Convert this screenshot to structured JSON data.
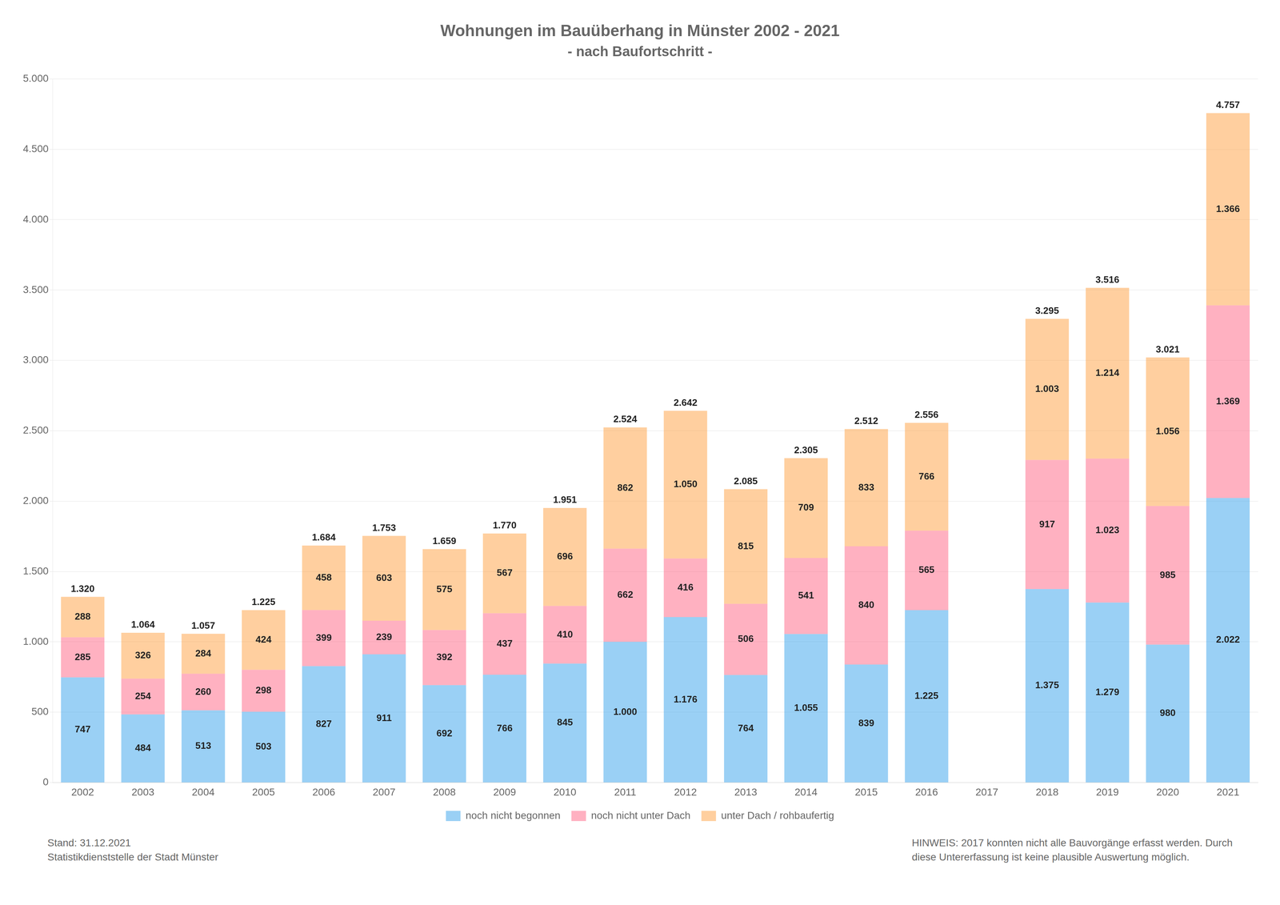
{
  "chart_data": {
    "type": "bar",
    "title": "Wohnungen im Bauüberhang in Münster 2002 - 2021",
    "subtitle": "- nach Baufortschritt -",
    "categories": [
      "2002",
      "2003",
      "2004",
      "2005",
      "2006",
      "2007",
      "2008",
      "2009",
      "2010",
      "2011",
      "2012",
      "2013",
      "2014",
      "2015",
      "2016",
      "2017",
      "2018",
      "2019",
      "2020",
      "2021"
    ],
    "series": [
      {
        "name": "noch nicht begonnen",
        "values": [
          747,
          484,
          513,
          503,
          827,
          911,
          692,
          766,
          845,
          1000,
          1176,
          764,
          1055,
          839,
          1225,
          0,
          1375,
          1279,
          980,
          2022
        ],
        "value_labels": [
          "747",
          "484",
          "513",
          "503",
          "827",
          "911",
          "692",
          "766",
          "845",
          "1.000",
          "1.176",
          "764",
          "1.055",
          "839",
          "1.225",
          null,
          "1.375",
          "1.279",
          "980",
          "2.022"
        ]
      },
      {
        "name": "noch nicht unter Dach",
        "values": [
          285,
          254,
          260,
          298,
          399,
          239,
          392,
          437,
          410,
          662,
          416,
          506,
          541,
          840,
          565,
          0,
          917,
          1023,
          985,
          1369
        ],
        "value_labels": [
          "285",
          "254",
          "260",
          "298",
          "399",
          "239",
          "392",
          "437",
          "410",
          "662",
          "416",
          "506",
          "541",
          "840",
          "565",
          null,
          "917",
          "1.023",
          "985",
          "1.369"
        ]
      },
      {
        "name": "unter Dach / rohbaufertig",
        "values": [
          288,
          326,
          284,
          424,
          458,
          603,
          575,
          567,
          696,
          862,
          1050,
          815,
          709,
          833,
          766,
          0,
          1003,
          1214,
          1056,
          1366
        ],
        "value_labels": [
          "288",
          "326",
          "284",
          "424",
          "458",
          "603",
          "575",
          "567",
          "696",
          "862",
          "1.050",
          "815",
          "709",
          "833",
          "766",
          null,
          "1.003",
          "1.214",
          "1.056",
          "1.366"
        ]
      }
    ],
    "totals": [
      1320,
      1064,
      1057,
      1225,
      1684,
      1753,
      1659,
      1770,
      1951,
      2524,
      2642,
      2085,
      2305,
      2512,
      2556,
      0,
      3295,
      3516,
      3021,
      4757
    ],
    "total_labels": [
      "1.320",
      "1.064",
      "1.057",
      "1.225",
      "1.684",
      "1.753",
      "1.659",
      "1.770",
      "1.951",
      "2.524",
      "2.642",
      "2.085",
      "2.305",
      "2.512",
      "2.556",
      null,
      "3.295",
      "3.516",
      "3.021",
      "4.757"
    ],
    "ylim": [
      0,
      5000
    ],
    "yticks": [
      0,
      500,
      {
        "value": 1000,
        "label": "1.000"
      },
      {
        "value": 1500,
        "label": "1.500"
      },
      {
        "value": 2000,
        "label": "2.000"
      },
      {
        "value": 2500,
        "label": "2.500"
      },
      {
        "value": 3000,
        "label": "3.000"
      },
      {
        "value": 3500,
        "label": "3.500"
      },
      {
        "value": 4000,
        "label": "4.000"
      },
      {
        "value": 4500,
        "label": "4.500"
      },
      {
        "value": 5000,
        "label": "5.000"
      }
    ],
    "stacked": true,
    "data_labels": true,
    "grid": "y",
    "legend": "bottom",
    "annotations": [
      "Stand: 31.12.2021\nStatistikdienststelle der Stadt Münster",
      "HINWEIS: 2017 konnten nicht alle Bauvorgänge erfasst werden. Durch\ndiese Untererfassung ist keine plausible Auswertung möglich."
    ]
  }
}
